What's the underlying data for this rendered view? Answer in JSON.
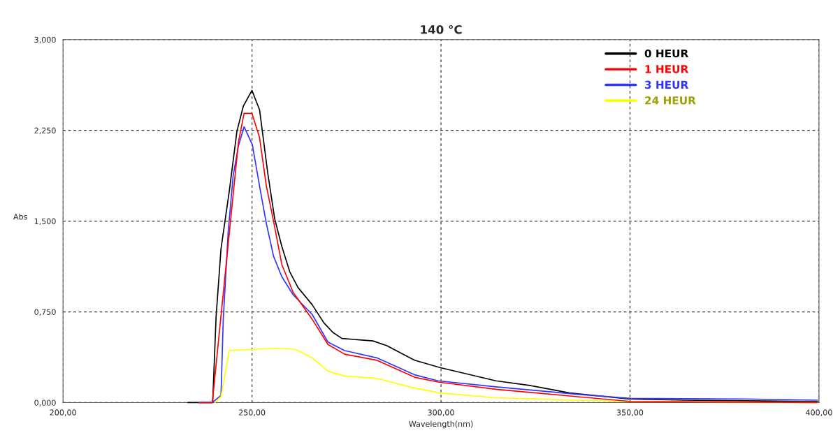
{
  "chart_data": {
    "type": "line",
    "title": "140 °C",
    "xlabel": "Wavelength(nm)",
    "ylabel": "Abs",
    "xlim": [
      200,
      400
    ],
    "xticks": [
      {
        "value": 200,
        "label": "200,00"
      },
      {
        "value": 250,
        "label": "250,00"
      },
      {
        "value": 300,
        "label": "300,00"
      },
      {
        "value": 350,
        "label": "350,00"
      },
      {
        "value": 400,
        "label": "400,00"
      }
    ],
    "ylim": [
      0,
      3
    ],
    "yticks": [
      {
        "value": 0,
        "label": "0,000"
      },
      {
        "value": 0.75,
        "label": "0,750"
      },
      {
        "value": 1.5,
        "label": "1,500"
      },
      {
        "value": 2.25,
        "label": "2,250"
      },
      {
        "value": 3,
        "label": "3,000"
      }
    ],
    "grid": true,
    "legend": "top right",
    "line_style": "solid",
    "marker": "none",
    "series": [
      {
        "name": "0 HEUR",
        "color": "#000000",
        "x": [
          233,
          239.6,
          240.5,
          241.8,
          244,
          246,
          247.7,
          250,
          252,
          254.2,
          256,
          257.9,
          260,
          262.2,
          265.9,
          269,
          271.4,
          273.8,
          282,
          285.7,
          293,
          299.7,
          314.5,
          323.8,
          330.6,
          334,
          349.7,
          364.5,
          399.6
        ],
        "values": [
          0,
          0,
          0.71,
          1.27,
          1.75,
          2.24,
          2.45,
          2.58,
          2.42,
          1.89,
          1.52,
          1.29,
          1.08,
          0.95,
          0.81,
          0.66,
          0.58,
          0.53,
          0.51,
          0.47,
          0.35,
          0.29,
          0.18,
          0.14,
          0.1,
          0.08,
          0.03,
          0.02,
          0.01
        ]
      },
      {
        "name": "1 HEUR",
        "color": "#ff0000",
        "x": [
          236,
          239.5,
          241.8,
          242.4,
          243.7,
          245,
          246.4,
          247.9,
          250,
          252,
          253.8,
          255.7,
          257.9,
          260.9,
          265.9,
          270.1,
          274.5,
          283,
          293,
          299.2,
          314.5,
          335.6,
          350,
          399.6
        ],
        "values": [
          0,
          0,
          null,
          null,
          null,
          null,
          2.15,
          2.39,
          2.39,
          2.19,
          1.79,
          1.5,
          1.14,
          0.91,
          0.69,
          0.48,
          0.4,
          0.35,
          0.21,
          0.17,
          0.11,
          0.05,
          0.01,
          0
        ]
      },
      {
        "name": "3 HEUR",
        "color": "#3333ff",
        "x": [
          236,
          239.5,
          241.8,
          242.4,
          243.7,
          245,
          246.4,
          247.9,
          250.1,
          252,
          253.8,
          255.7,
          257.9,
          260.9,
          265.9,
          270.1,
          274.5,
          283,
          293,
          299.2,
          314.5,
          335.6,
          350,
          380,
          399.6
        ],
        "values": [
          0,
          0,
          0.06,
          0.69,
          1.41,
          1.87,
          2.12,
          2.28,
          2.13,
          1.79,
          1.48,
          1.21,
          1.04,
          0.89,
          0.73,
          0.5,
          0.43,
          0.37,
          0.23,
          0.18,
          0.13,
          0.07,
          0.035,
          0.03,
          0.02
        ]
      },
      {
        "name": "24 HEUR",
        "color": "#ffff00",
        "x": [
          240.2,
          241.8,
          244,
          250,
          256.6,
          261.6,
          265.9,
          270.1,
          274.5,
          283,
          293,
          299.7,
          314.5,
          335.6,
          350,
          399.6
        ],
        "values": [
          0,
          0.05,
          0.43,
          0.44,
          0.45,
          0.44,
          0.37,
          0.26,
          0.22,
          0.2,
          0.12,
          0.08,
          0.04,
          0.02,
          0.01,
          0
        ]
      }
    ]
  }
}
